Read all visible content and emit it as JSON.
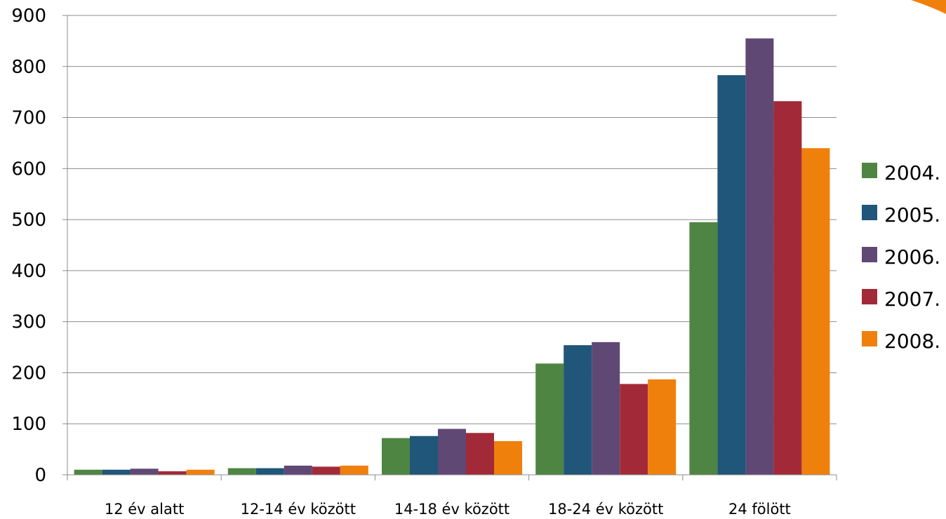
{
  "chart_data": {
    "type": "bar",
    "categories": [
      "12 év alatt",
      "12-14 év között",
      "14-18 év között",
      "18-24 év között",
      "24 fölött"
    ],
    "series": [
      {
        "name": "2004.",
        "color": "#4e8542",
        "values": [
          10,
          13,
          72,
          218,
          495
        ]
      },
      {
        "name": "2005.",
        "color": "#1f5679",
        "values": [
          10,
          13,
          76,
          254,
          783
        ]
      },
      {
        "name": "2006.",
        "color": "#604875",
        "values": [
          12,
          18,
          90,
          260,
          855
        ]
      },
      {
        "name": "2007.",
        "color": "#a22a38",
        "values": [
          7,
          16,
          82,
          178,
          732
        ]
      },
      {
        "name": "2008.",
        "color": "#f0800c",
        "values": [
          10,
          18,
          66,
          187,
          640
        ]
      }
    ],
    "yticks": [
      "0",
      "100",
      "200",
      "300",
      "400",
      "500",
      "600",
      "700",
      "800",
      "900"
    ],
    "ylim": [
      0,
      900
    ],
    "grid": true,
    "legend_position": "right",
    "title": "",
    "xlabel": "",
    "ylabel": ""
  },
  "decor": {
    "corner_accent_color": "#f0800c"
  }
}
